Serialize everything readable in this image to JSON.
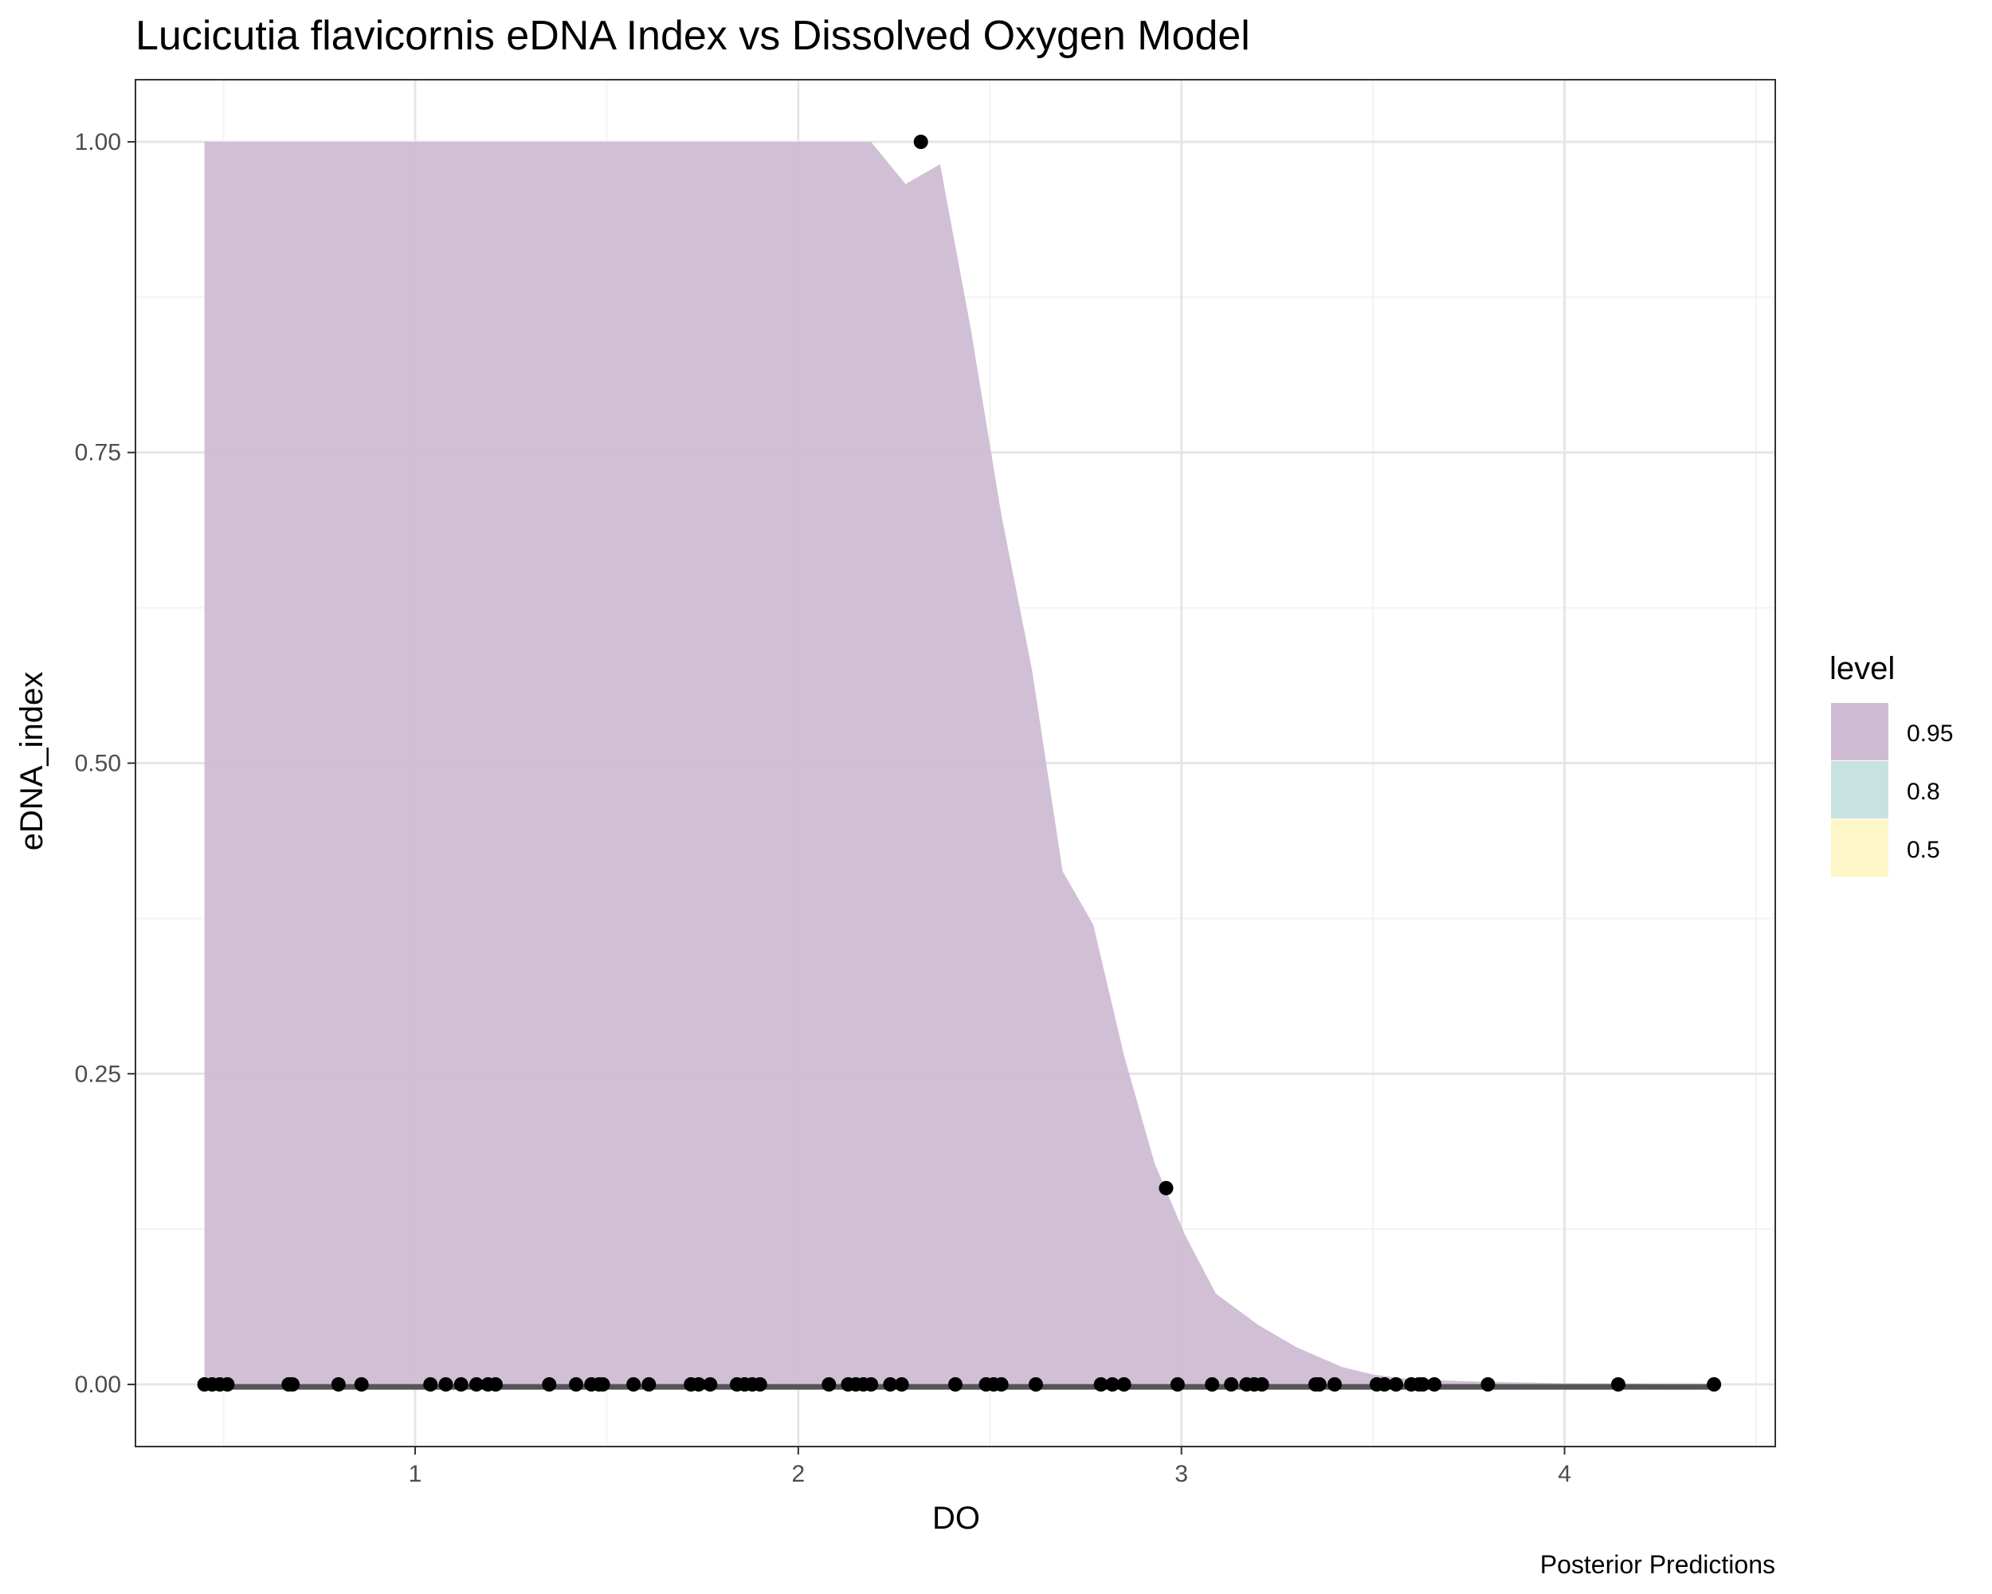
{
  "chart_data": {
    "type": "area",
    "title": "Lucicutia flavicornis eDNA Index vs Dissolved Oxygen Model",
    "xlabel": "DO",
    "ylabel": "eDNA_index",
    "caption": "Posterior Predictions",
    "xlim": [
      0.27,
      4.55
    ],
    "ylim": [
      -0.05,
      1.05
    ],
    "x_ticks": [
      1,
      2,
      3,
      4
    ],
    "x_tick_labels": [
      "1",
      "2",
      "3",
      "4"
    ],
    "y_ticks": [
      0,
      0.25,
      0.5,
      0.75,
      1
    ],
    "y_tick_labels": [
      "0.00",
      "0.25",
      "0.50",
      "0.75",
      "1.00"
    ],
    "grid": true,
    "legend": {
      "title": "level",
      "position": "right",
      "entries": [
        {
          "label": "0.95",
          "color": "#cfbcd4"
        },
        {
          "label": "0.8",
          "color": "#c8e2e1"
        },
        {
          "label": "0.5",
          "color": "#fdf7c8"
        }
      ]
    },
    "ribbon_95": {
      "x": [
        0.45,
        0.8,
        1.2,
        1.6,
        2.0,
        2.19,
        2.28,
        2.37,
        2.45,
        2.53,
        2.61,
        2.69,
        2.77,
        2.85,
        2.93,
        3.01,
        3.09,
        3.2,
        3.3,
        3.42,
        3.5,
        3.6,
        3.8,
        4.0,
        4.2,
        4.4
      ],
      "upper": [
        1.0,
        1.0,
        1.0,
        1.0,
        1.0,
        1.0,
        0.966,
        0.982,
        0.85,
        0.7,
        0.575,
        0.413,
        0.37,
        0.265,
        0.178,
        0.12,
        0.073,
        0.048,
        0.03,
        0.014,
        0.008,
        0.004,
        0.002,
        0.001,
        0.0005,
        0.0
      ],
      "lower": [
        0,
        0,
        0,
        0,
        0,
        0,
        0,
        0,
        0,
        0,
        0,
        0,
        0,
        0,
        0,
        0,
        0,
        0,
        0,
        0,
        0,
        0,
        0,
        0,
        0,
        0
      ]
    },
    "median_line": {
      "x": [
        0.45,
        4.4
      ],
      "y": [
        -0.002,
        -0.002
      ]
    },
    "points": {
      "x": [
        0.45,
        0.47,
        0.49,
        0.51,
        0.67,
        0.68,
        0.8,
        0.86,
        1.04,
        1.08,
        1.12,
        1.16,
        1.19,
        1.21,
        1.35,
        1.42,
        1.46,
        1.48,
        1.49,
        1.57,
        1.61,
        1.72,
        1.74,
        1.77,
        1.84,
        1.86,
        1.88,
        1.9,
        2.08,
        2.13,
        2.15,
        2.17,
        2.19,
        2.24,
        2.27,
        2.41,
        2.49,
        2.51,
        2.53,
        2.62,
        2.79,
        2.82,
        2.85,
        2.99,
        3.08,
        3.13,
        3.17,
        3.19,
        3.21,
        3.35,
        3.36,
        3.4,
        3.51,
        3.53,
        3.56,
        3.6,
        3.62,
        3.63,
        3.66,
        3.8,
        4.14,
        4.39,
        2.32,
        2.96
      ],
      "y": [
        0,
        0,
        0,
        0,
        0,
        0,
        0,
        0,
        0,
        0,
        0,
        0,
        0,
        0,
        0,
        0,
        0,
        0,
        0,
        0,
        0,
        0,
        0,
        0,
        0,
        0,
        0,
        0,
        0,
        0,
        0,
        0,
        0,
        0,
        0,
        0,
        0,
        0,
        0,
        0,
        0,
        0,
        0,
        0,
        0,
        0,
        0,
        0,
        0,
        0,
        0,
        0,
        0,
        0,
        0,
        0,
        0,
        0,
        0,
        0,
        0,
        0,
        1.0,
        0.158
      ]
    },
    "colors": {
      "ribbon_95": "#cfbcd4",
      "median_line": "#555555",
      "point": "#000000",
      "panel_border": "#333333",
      "grid_major": "#e6e6e6",
      "grid_minor": "#f3f3f3"
    }
  }
}
